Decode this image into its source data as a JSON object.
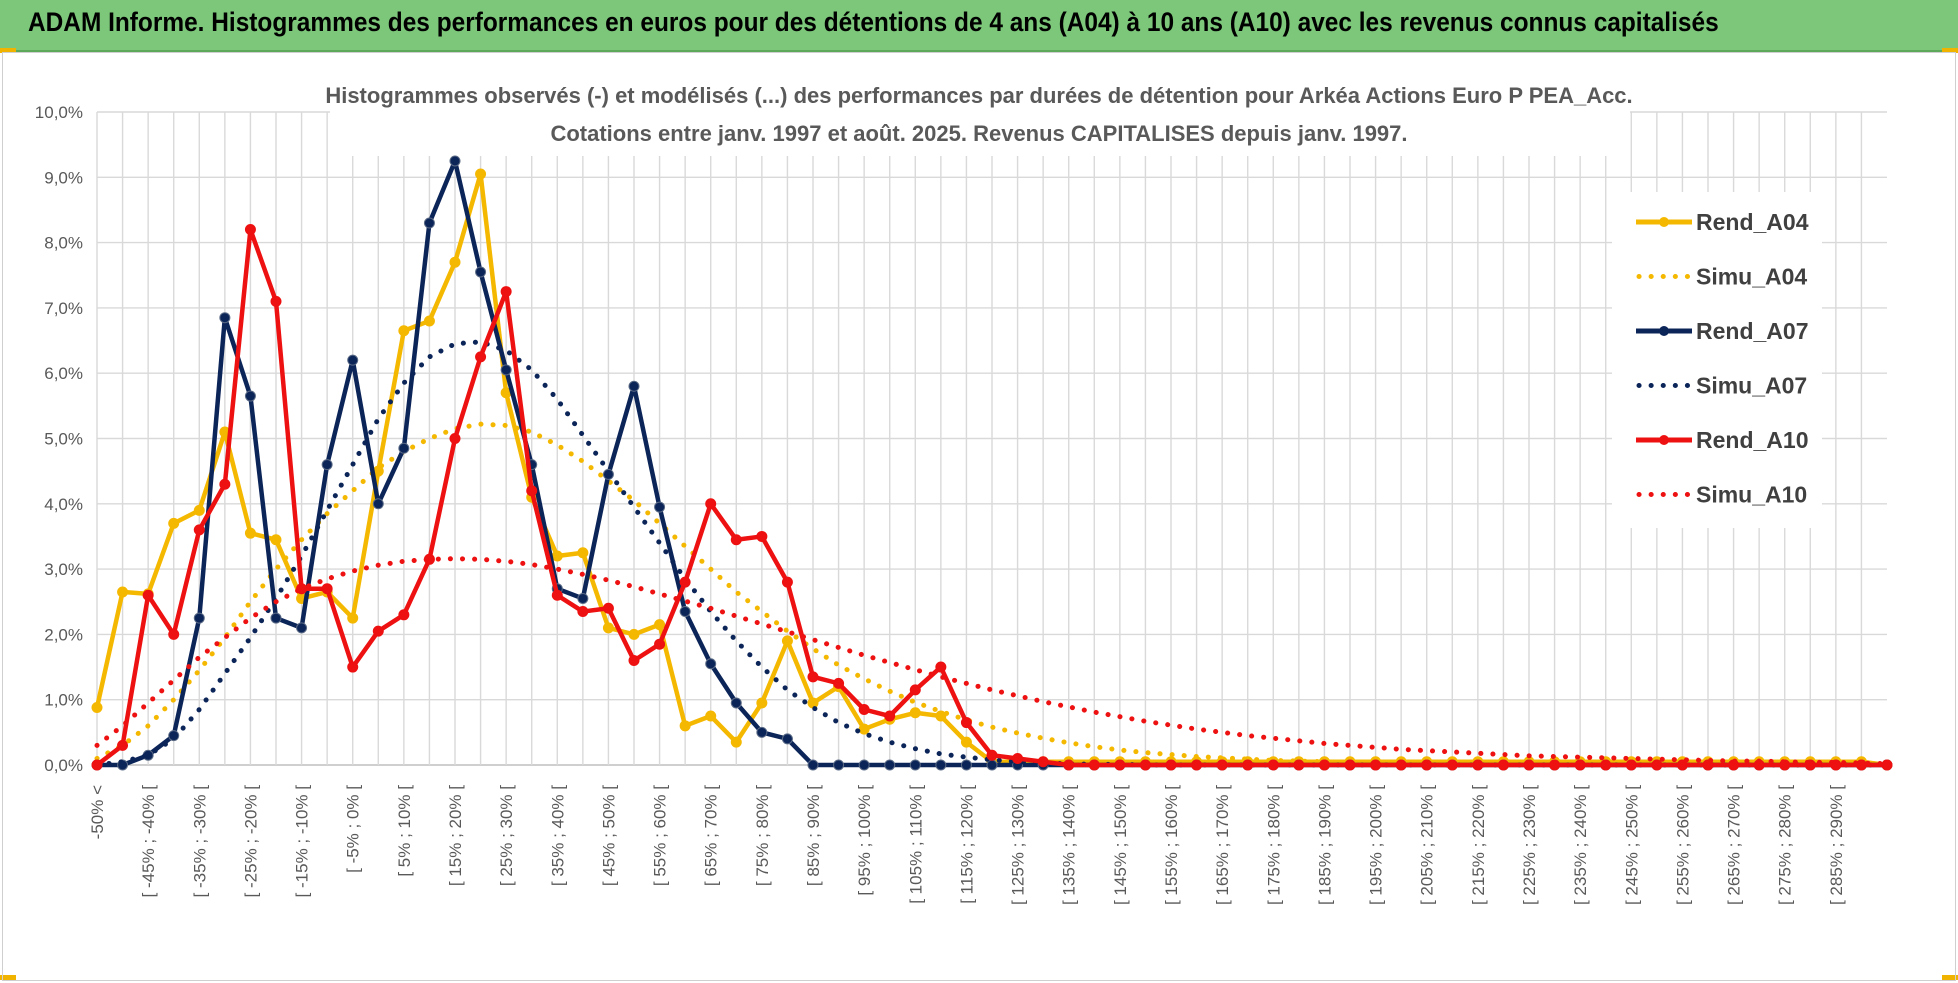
{
  "banner": {
    "title": "ADAM Informe. Histogrammes des performances en euros pour des détentions de 4 ans (A04) à 10 ans (A10) avec les revenus connus capitalisés"
  },
  "colors": {
    "banner": "#7cc77a",
    "A04": "#f5b800",
    "A07": "#0c2559",
    "A10": "#ee1111",
    "grid": "#d9d9d9"
  },
  "chart_data": {
    "type": "line",
    "title": "Histogrammes observés (-) et modélisés (...) des performances par durées de détention pour Arkéa Actions Euro P PEA_Acc.",
    "subtitle": "Cotations entre janv. 1997 et août. 2025. Revenus CAPITALISES depuis janv. 1997.",
    "xlabel": "",
    "ylabel": "",
    "ylim": [
      0,
      0.1
    ],
    "yticks": [
      "0,0%",
      "1,0%",
      "2,0%",
      "3,0%",
      "4,0%",
      "5,0%",
      "6,0%",
      "7,0%",
      "8,0%",
      "9,0%",
      "10,0%"
    ],
    "grid": true,
    "legend_position": "right",
    "x_tick_labels": [
      "-50% <",
      "[ -45% ; -40% [",
      "[ -35% ; -30% [",
      "[ -25% ; -20% [",
      "[ -15% ; -10% [",
      "[ -5% ; 0% [",
      "[ 5% ; 10% [",
      "[ 15% ; 20% [",
      "[ 25% ; 30% [",
      "[ 35% ; 40% [",
      "[ 45% ; 50% [",
      "[ 55% ; 60% [",
      "[ 65% ; 70% [",
      "[ 75% ; 80% [",
      "[ 85% ; 90% [",
      "[ 95% ; 100% [",
      "[ 105% ; 110% [",
      "[ 115% ; 120% [",
      "[ 125% ; 130% [",
      "[ 135% ; 140% [",
      "[ 145% ; 150% [",
      "[ 155% ; 160% [",
      "[ 165% ; 170% [",
      "[ 175% ; 180% [",
      "[ 185% ; 190% [",
      "[ 195% ; 200% [",
      "[ 205% ; 210% [",
      "[ 215% ; 220% [",
      "[ 225% ; 230% [",
      "[ 235% ; 240% [",
      "[ 245% ; 250% [",
      "[ 255% ; 260% [",
      "[ 265% ; 270% [",
      "[ 275% ; 280% [",
      "[ 285% ; 290% ["
    ],
    "series": [
      {
        "name": "Rend_A04",
        "style": "solid",
        "color": "#f5b800",
        "values": [
          0.0088,
          0.0265,
          0.0262,
          0.037,
          0.039,
          0.051,
          0.0355,
          0.0345,
          0.0255,
          0.0265,
          0.0225,
          0.045,
          0.0665,
          0.068,
          0.077,
          0.0905,
          0.057,
          0.041,
          0.032,
          0.0325,
          0.021,
          0.02,
          0.0215,
          0.006,
          0.0075,
          0.0035,
          0.0095,
          0.019,
          0.0095,
          0.012,
          0.0055,
          0.007,
          0.008,
          0.0075,
          0.0035,
          0.0005,
          0.0005,
          0.0005,
          0.0005,
          0.0005,
          0.0005,
          0.0005,
          0.0005,
          0.0005,
          0.0005,
          0.0005,
          0.0005,
          0.0005,
          0.0005,
          0.0005,
          0.0005,
          0.0005,
          0.0005,
          0.0005,
          0.0005,
          0.0005,
          0.0005,
          0.0005,
          0.0005,
          0.0005,
          0.0005,
          0.0005,
          0.0005,
          0.0005,
          0.0005,
          0.0005,
          0.0005,
          0.0005,
          0.0005,
          0.0005,
          0.0
        ]
      },
      {
        "name": "Simu_A04",
        "style": "dotted",
        "color": "#f5b800",
        "values": [
          0.001,
          0.003,
          0.006,
          0.01,
          0.0145,
          0.0195,
          0.025,
          0.03,
          0.0345,
          0.0385,
          0.042,
          0.0455,
          0.048,
          0.05,
          0.0515,
          0.0522,
          0.052,
          0.051,
          0.049,
          0.0465,
          0.0435,
          0.0405,
          0.037,
          0.0335,
          0.03,
          0.0265,
          0.0235,
          0.0205,
          0.0178,
          0.0153,
          0.0132,
          0.0113,
          0.0096,
          0.0082,
          0.0069,
          0.0058,
          0.0049,
          0.0041,
          0.0034,
          0.0028,
          0.0023,
          0.0019,
          0.0016,
          0.0013,
          0.0011,
          0.0009,
          0.0007,
          0.0006,
          0.0005,
          0.0004,
          0.0003,
          0.0003,
          0.0002,
          0.0002,
          0.0001,
          0.0001,
          0.0001,
          0.0001,
          0.0001,
          0.0001,
          0.0001,
          0.0001,
          0.0001,
          0.0001,
          0.0001,
          0.0001,
          0.0001,
          0.0001,
          0.0001,
          0.0001,
          0.0
        ]
      },
      {
        "name": "Rend_A07",
        "style": "solid",
        "color": "#0c2559",
        "values": [
          0.0,
          0.0,
          0.0015,
          0.0045,
          0.0225,
          0.0685,
          0.0565,
          0.0225,
          0.021,
          0.046,
          0.062,
          0.04,
          0.0485,
          0.083,
          0.0925,
          0.0755,
          0.0605,
          0.046,
          0.027,
          0.0255,
          0.0445,
          0.058,
          0.0395,
          0.0235,
          0.0155,
          0.0095,
          0.005,
          0.004,
          0.0,
          0.0,
          0.0,
          0.0,
          0.0,
          0.0,
          0.0,
          0.0,
          0.0,
          0.0,
          0.0,
          0.0,
          0.0,
          0.0,
          0.0,
          0.0,
          0.0,
          0.0,
          0.0,
          0.0,
          0.0,
          0.0,
          0.0,
          0.0,
          0.0,
          0.0,
          0.0,
          0.0,
          0.0,
          0.0,
          0.0,
          0.0,
          0.0,
          0.0,
          0.0,
          0.0,
          0.0,
          0.0,
          0.0,
          0.0,
          0.0,
          0.0,
          0.0
        ]
      },
      {
        "name": "Simu_A07",
        "style": "dotted",
        "color": "#0c2559",
        "values": [
          0.0,
          0.0005,
          0.0015,
          0.004,
          0.0085,
          0.014,
          0.0195,
          0.0255,
          0.032,
          0.039,
          0.046,
          0.053,
          0.0585,
          0.0625,
          0.0645,
          0.0648,
          0.0635,
          0.0605,
          0.056,
          0.0505,
          0.045,
          0.0395,
          0.034,
          0.0285,
          0.0235,
          0.019,
          0.015,
          0.0115,
          0.0088,
          0.0065,
          0.0048,
          0.0035,
          0.0025,
          0.0017,
          0.0012,
          0.0008,
          0.0005,
          0.0003,
          0.0002,
          0.0001,
          0.0001,
          0.0,
          0.0,
          0.0,
          0.0,
          0.0,
          0.0,
          0.0,
          0.0,
          0.0,
          0.0,
          0.0,
          0.0,
          0.0,
          0.0,
          0.0,
          0.0,
          0.0,
          0.0,
          0.0,
          0.0,
          0.0,
          0.0,
          0.0,
          0.0,
          0.0,
          0.0,
          0.0,
          0.0,
          0.0,
          0.0
        ]
      },
      {
        "name": "Rend_A10",
        "style": "solid",
        "color": "#ee1111",
        "values": [
          0.0,
          0.003,
          0.026,
          0.02,
          0.036,
          0.043,
          0.082,
          0.071,
          0.027,
          0.027,
          0.015,
          0.0205,
          0.023,
          0.0315,
          0.05,
          0.0625,
          0.0725,
          0.042,
          0.026,
          0.0235,
          0.024,
          0.016,
          0.0185,
          0.028,
          0.04,
          0.0345,
          0.035,
          0.028,
          0.0135,
          0.0125,
          0.0085,
          0.0075,
          0.0115,
          0.015,
          0.0065,
          0.0015,
          0.001,
          0.0005,
          0.0,
          0.0,
          0.0,
          0.0,
          0.0,
          0.0,
          0.0,
          0.0,
          0.0,
          0.0,
          0.0,
          0.0,
          0.0,
          0.0,
          0.0,
          0.0,
          0.0,
          0.0,
          0.0,
          0.0,
          0.0,
          0.0,
          0.0,
          0.0,
          0.0,
          0.0,
          0.0,
          0.0,
          0.0,
          0.0,
          0.0,
          0.0,
          0.0
        ]
      },
      {
        "name": "Simu_A10",
        "style": "dotted",
        "color": "#ee1111",
        "values": [
          0.003,
          0.006,
          0.0095,
          0.013,
          0.0165,
          0.0195,
          0.0225,
          0.025,
          0.027,
          0.0285,
          0.0297,
          0.0306,
          0.0312,
          0.0315,
          0.0316,
          0.0315,
          0.0312,
          0.0307,
          0.03,
          0.0292,
          0.0283,
          0.0273,
          0.0262,
          0.0251,
          0.024,
          0.0228,
          0.0216,
          0.0204,
          0.0192,
          0.018,
          0.0168,
          0.0157,
          0.0146,
          0.0135,
          0.0125,
          0.0115,
          0.0106,
          0.0097,
          0.0089,
          0.0081,
          0.0074,
          0.0067,
          0.0061,
          0.0055,
          0.005,
          0.0045,
          0.0041,
          0.0037,
          0.0033,
          0.003,
          0.0027,
          0.0024,
          0.0022,
          0.002,
          0.0018,
          0.0016,
          0.0014,
          0.0013,
          0.0012,
          0.0011,
          0.001,
          0.0009,
          0.0008,
          0.0007,
          0.0006,
          0.0006,
          0.0005,
          0.0004,
          0.0004,
          0.0003,
          0.0002
        ]
      }
    ]
  }
}
